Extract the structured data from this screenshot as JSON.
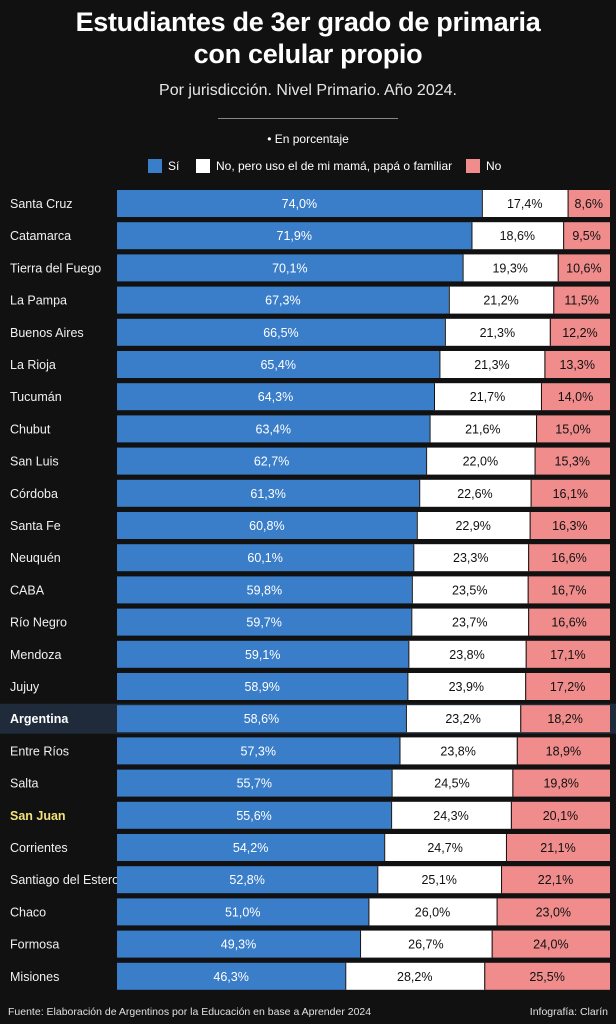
{
  "title_line1": "Estudiantes de 3er grado de primaria",
  "title_line2": "con celular propio",
  "subtitle": "Por jurisdicción. Nivel Primario. Año 2024.",
  "unit_note": "• En porcentaje",
  "footer": {
    "source": "Fuente: Elaboración de Argentinos por la Educación en base a Aprender 2024",
    "credit": "Infografía: Clarín"
  },
  "colors": {
    "si": "#3a7dc9",
    "no_pero": "#ffffff",
    "no": "#f08c8c",
    "highlight_row": "#1f2a3a",
    "highlight_label": "#f3e27a"
  },
  "chart_data": {
    "type": "bar",
    "stacked": true,
    "orientation": "horizontal",
    "xlim": [
      0,
      100
    ],
    "legend_position": "top",
    "categories": [
      "Santa Cruz",
      "Catamarca",
      "Tierra del Fuego",
      "La Pampa",
      "Buenos Aires",
      "La Rioja",
      "Tucumán",
      "Chubut",
      "San Luis",
      "Córdoba",
      "Santa Fe",
      "Neuquén",
      "CABA",
      "Río Negro",
      "Mendoza",
      "Jujuy",
      "Argentina",
      "Entre Ríos",
      "Salta",
      "San Juan",
      "Corrientes",
      "Santiago del Estero",
      "Chaco",
      "Formosa",
      "Misiones"
    ],
    "highlight_bold": "Argentina",
    "highlight_yellow": "San Juan",
    "series": [
      {
        "name": "Sí",
        "values": [
          74.0,
          71.9,
          70.1,
          67.3,
          66.5,
          65.4,
          64.3,
          63.4,
          62.7,
          61.3,
          60.8,
          60.1,
          59.8,
          59.7,
          59.1,
          58.9,
          58.6,
          57.3,
          55.7,
          55.6,
          54.2,
          52.8,
          51.0,
          49.3,
          46.3
        ],
        "labels": [
          "74,0%",
          "71,9%",
          "70,1%",
          "67,3%",
          "66,5%",
          "65,4%",
          "64,3%",
          "63,4%",
          "62,7%",
          "61,3%",
          "60,8%",
          "60,1%",
          "59,8%",
          "59,7%",
          "59,1%",
          "58,9%",
          "58,6%",
          "57,3%",
          "55,7%",
          "55,6%",
          "54,2%",
          "52,8%",
          "51,0%",
          "49,3%",
          "46,3%"
        ]
      },
      {
        "name": "No, pero uso el de mi mamá, papá o familiar",
        "values": [
          17.4,
          18.6,
          19.3,
          21.2,
          21.3,
          21.3,
          21.7,
          21.6,
          22.0,
          22.6,
          22.9,
          23.3,
          23.5,
          23.7,
          23.8,
          23.9,
          23.2,
          23.8,
          24.5,
          24.3,
          24.7,
          25.1,
          26.0,
          26.7,
          28.2
        ],
        "labels": [
          "17,4%",
          "18,6%",
          "19,3%",
          "21,2%",
          "21,3%",
          "21,3%",
          "21,7%",
          "21,6%",
          "22,0%",
          "22,6%",
          "22,9%",
          "23,3%",
          "23,5%",
          "23,7%",
          "23,8%",
          "23,9%",
          "23,2%",
          "23,8%",
          "24,5%",
          "24,3%",
          "24,7%",
          "25,1%",
          "26,0%",
          "26,7%",
          "28,2%"
        ]
      },
      {
        "name": "No",
        "values": [
          8.6,
          9.5,
          10.6,
          11.5,
          12.2,
          13.3,
          14.0,
          15.0,
          15.3,
          16.1,
          16.3,
          16.6,
          16.7,
          16.6,
          17.1,
          17.2,
          18.2,
          18.9,
          19.8,
          20.1,
          21.1,
          22.1,
          23.0,
          24.0,
          25.5
        ],
        "labels": [
          "8,6%",
          "9,5%",
          "10,6%",
          "11,5%",
          "12,2%",
          "13,3%",
          "14,0%",
          "15,0%",
          "15,3%",
          "16,1%",
          "16,3%",
          "16,6%",
          "16,7%",
          "16,6%",
          "17,1%",
          "17,2%",
          "18,2%",
          "18,9%",
          "19,8%",
          "20,1%",
          "21,1%",
          "22,1%",
          "23,0%",
          "24,0%",
          "25,5%"
        ]
      }
    ]
  }
}
